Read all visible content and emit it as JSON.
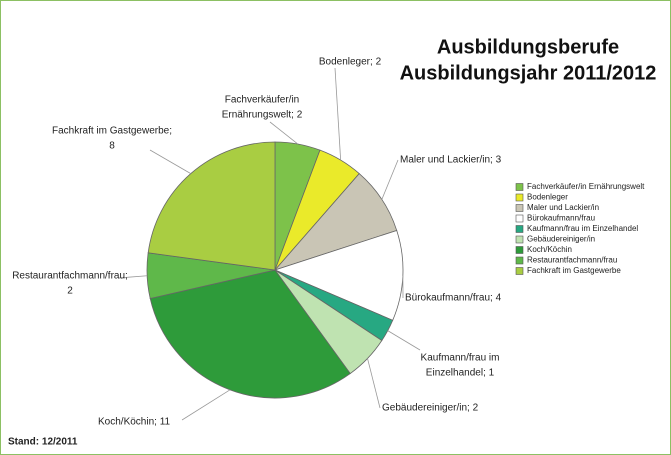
{
  "chart_data": {
    "type": "pie",
    "title": "Ausbildungsberufe",
    "subtitle": "Ausbildungsjahr 2011/2012",
    "footnote": "Stand: 12/2011",
    "categories": [
      "Fachverkäufer/in Ernährungswelt",
      "Bodenleger",
      "Maler und Lackier/in",
      "Bürokaufmann/frau",
      "Kaufmann/frau im Einzelhandel",
      "Gebäudereiniger/in",
      "Koch/Köchin",
      "Restaurantfachmann/frau",
      "Fachkraft im Gastgewerbe"
    ],
    "values": [
      2,
      2,
      3,
      4,
      1,
      2,
      11,
      2,
      8
    ],
    "value_labels": [
      [
        "Fachverkäufer/in",
        "Ernährungswelt; 2"
      ],
      [
        "Bodenleger; 2"
      ],
      [
        "Maler und Lackier/in; 3"
      ],
      [
        "Bürokaufmann/frau; 4"
      ],
      [
        "Kaufmann/frau im",
        "Einzelhandel; 1"
      ],
      [
        "Gebäudereiniger/in; 2"
      ],
      [
        "Koch/Köchin; 11"
      ],
      [
        "Restaurantfachmann/frau;",
        "2"
      ],
      [
        "Fachkraft im Gastgewerbe;",
        "8"
      ]
    ],
    "colors": [
      "#7dc24a",
      "#eaea2a",
      "#c9c5b5",
      "#ffffff",
      "#27a882",
      "#bfe3b1",
      "#2e9b3a",
      "#5fb84a",
      "#a9cd42"
    ],
    "legend": "right"
  }
}
